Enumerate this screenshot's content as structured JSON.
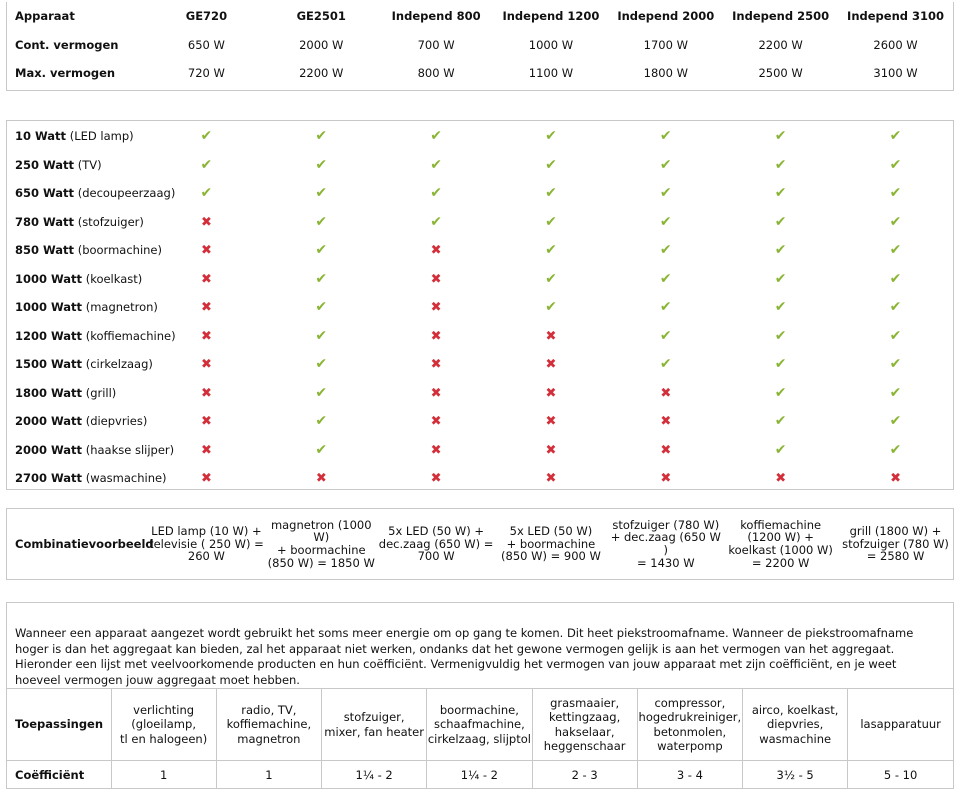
{
  "specs": {
    "header_label": "Apparaat",
    "devices": [
      "GE720",
      "GE2501",
      "Independ 800",
      "Independ 1200",
      "Independ 2000",
      "Independ 2500",
      "Independ 3100"
    ],
    "rows": [
      {
        "label": "Cont. vermogen",
        "values": [
          "650 W",
          "2000 W",
          "700 W",
          "1000 W",
          "1700 W",
          "2200 W",
          "2600 W"
        ]
      },
      {
        "label": "Max. vermogen",
        "values": [
          "720 W",
          "2200 W",
          "800 W",
          "1100 W",
          "1800 W",
          "2500 W",
          "3100 W"
        ]
      }
    ]
  },
  "compatibility": {
    "yes_icon": "check-icon",
    "no_icon": "cross-icon",
    "yes_color": "#8ab534",
    "no_color": "#d32f3a",
    "rows": [
      {
        "watt": "10 Watt",
        "appliance": "(LED lamp)",
        "support": [
          true,
          true,
          true,
          true,
          true,
          true,
          true
        ]
      },
      {
        "watt": "250 Watt",
        "appliance": "(TV)",
        "support": [
          true,
          true,
          true,
          true,
          true,
          true,
          true
        ]
      },
      {
        "watt": "650 Watt",
        "appliance": "(decoupeerzaag)",
        "support": [
          true,
          true,
          true,
          true,
          true,
          true,
          true
        ]
      },
      {
        "watt": "780 Watt",
        "appliance": "(stofzuiger)",
        "support": [
          false,
          true,
          true,
          true,
          true,
          true,
          true
        ]
      },
      {
        "watt": "850 Watt",
        "appliance": "(boormachine)",
        "support": [
          false,
          true,
          false,
          true,
          true,
          true,
          true
        ]
      },
      {
        "watt": "1000 Watt",
        "appliance": "(koelkast)",
        "support": [
          false,
          true,
          false,
          true,
          true,
          true,
          true
        ]
      },
      {
        "watt": "1000 Watt",
        "appliance": " (magnetron)",
        "support": [
          false,
          true,
          false,
          true,
          true,
          true,
          true
        ]
      },
      {
        "watt": "1200 Watt",
        "appliance": "(koffiemachine)",
        "support": [
          false,
          true,
          false,
          false,
          true,
          true,
          true
        ]
      },
      {
        "watt": "1500 Watt",
        "appliance": "(cirkelzaag)",
        "support": [
          false,
          true,
          false,
          false,
          true,
          true,
          true
        ]
      },
      {
        "watt": "1800 Watt",
        "appliance": "(grill)",
        "support": [
          false,
          true,
          false,
          false,
          false,
          true,
          true
        ]
      },
      {
        "watt": "2000 Watt",
        "appliance": "(diepvries)",
        "support": [
          false,
          true,
          false,
          false,
          false,
          true,
          true
        ]
      },
      {
        "watt": "2000 Watt",
        "appliance": "(haakse slijper)",
        "support": [
          false,
          true,
          false,
          false,
          false,
          true,
          true
        ]
      },
      {
        "watt": "2700 Watt",
        "appliance": " (wasmachine)",
        "support": [
          false,
          false,
          false,
          false,
          false,
          false,
          false
        ]
      }
    ]
  },
  "combinations": {
    "label": "Combinatievoorbeeld",
    "examples": [
      [
        "LED lamp (10 W) +",
        "televisie ( 250 W) =",
        "260 W"
      ],
      [
        "magnetron (1000 W)",
        "+ boormachine",
        "(850 W) = 1850 W"
      ],
      [
        "5x LED (50 W) +",
        "dec.zaag (650 W) =",
        "700 W"
      ],
      [
        "5x LED (50 W)",
        "+ boormachine",
        "(850 W) = 900 W"
      ],
      [
        "stofzuiger (780 W)",
        "+ dec.zaag (650 W )",
        "= 1430 W"
      ],
      [
        "koffiemachine",
        "(1200 W) +",
        "koelkast (1000 W)",
        "= 2200 W"
      ],
      [
        "grill (1800 W) +",
        "stofzuiger (780 W)",
        "=  2580 W"
      ]
    ]
  },
  "coefficients": {
    "intro": "Wanneer een apparaat aangezet wordt gebruikt het soms meer energie om op gang te komen. Dit heet piekstroomafname. Wanneer de piekstroomafname hoger is dan het aggregaat kan bieden, zal het apparaat niet werken, ondanks dat het gewone vermogen gelijk is aan het vermogen van het aggregaat. Hieronder een lijst met veelvoorkomende producten en hun coëfficiënt. Vermenigvuldig het vermogen van jouw apparaat met zijn coëfficiënt, en je weet hoeveel vermogen jouw aggregaat moet hebben.",
    "apps_label": "Toepassingen",
    "coef_label": "Coëfficiënt",
    "applications": [
      [
        "verlichting",
        "(gloeilamp,",
        "tl en halogeen)"
      ],
      [
        "radio, TV,",
        "koffiemachine,",
        "magnetron"
      ],
      [
        "stofzuiger,",
        "mixer, fan heater"
      ],
      [
        "boormachine,",
        "schaafmachine,",
        "cirkelzaag, slijptol"
      ],
      [
        "grasmaaier,",
        "kettingzaag,",
        "hakselaar,",
        "heggenschaar"
      ],
      [
        "compressor,",
        "hogedrukreiniger,",
        "betonmolen,",
        "waterpomp"
      ],
      [
        "airco, koelkast,",
        "diepvries,",
        "wasmachine"
      ],
      [
        "lasapparatuur"
      ]
    ],
    "values": [
      "1",
      "1",
      "1¼ - 2",
      "1¼ - 2",
      "2 - 3",
      "3 - 4",
      "3½ - 5",
      "5 - 10"
    ]
  }
}
